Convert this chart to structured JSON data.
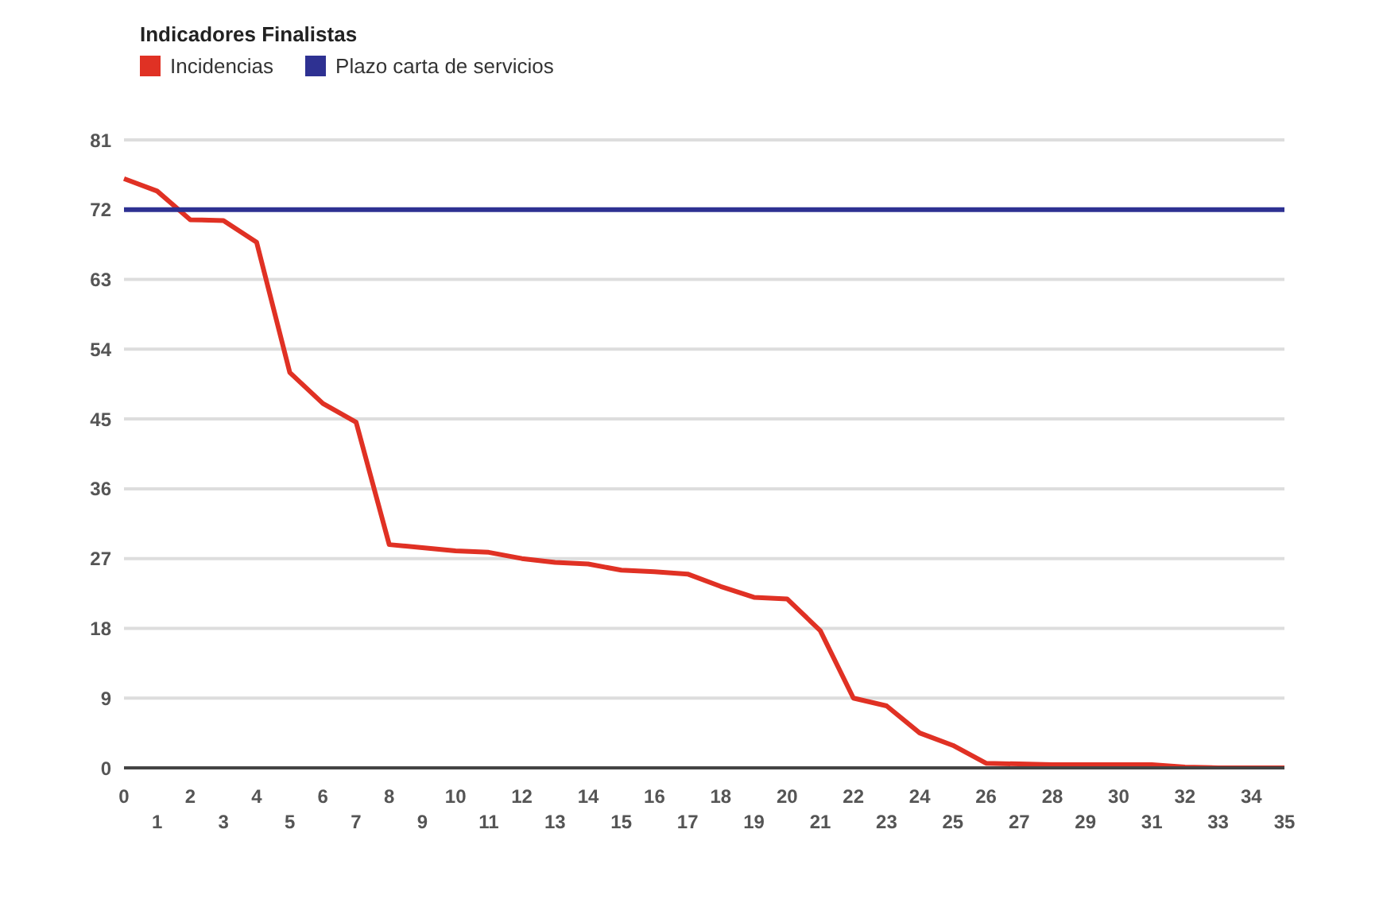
{
  "chart_data": {
    "type": "line",
    "title": "Indicadores Finalistas",
    "categories": [
      "0",
      "1",
      "2",
      "3",
      "4",
      "5",
      "6",
      "7",
      "8",
      "9",
      "10",
      "11",
      "12",
      "13",
      "14",
      "15",
      "16",
      "17",
      "18",
      "19",
      "20",
      "21",
      "22",
      "23",
      "24",
      "25",
      "26",
      "27",
      "28",
      "29",
      "30",
      "31",
      "32",
      "33",
      "34",
      "35"
    ],
    "series": [
      {
        "name": "Incidencias",
        "color": "#e03124",
        "values": [
          76,
          74.4,
          70.7,
          70.6,
          67.8,
          51,
          47,
          44.6,
          28.8,
          28.4,
          28,
          27.8,
          27,
          26.5,
          26.3,
          25.5,
          25.3,
          25,
          23.4,
          22,
          21.8,
          17.7,
          9,
          8,
          4.5,
          2.9,
          0.6,
          0.5,
          0.4,
          0.4,
          0.4,
          0.4,
          0.1,
          0,
          0,
          0
        ]
      },
      {
        "name": "Plazo carta de servicios",
        "color": "#2e3192",
        "values": [
          72,
          72,
          72,
          72,
          72,
          72,
          72,
          72,
          72,
          72,
          72,
          72,
          72,
          72,
          72,
          72,
          72,
          72,
          72,
          72,
          72,
          72,
          72,
          72,
          72,
          72,
          72,
          72,
          72,
          72,
          72,
          72,
          72,
          72,
          72,
          72
        ]
      }
    ],
    "ylim": [
      0,
      81
    ],
    "yticks": [
      0,
      9,
      18,
      27,
      36,
      45,
      54,
      63,
      72,
      81
    ],
    "grid": "y",
    "legend": "top left",
    "marker": "none",
    "line_style": "solid"
  }
}
